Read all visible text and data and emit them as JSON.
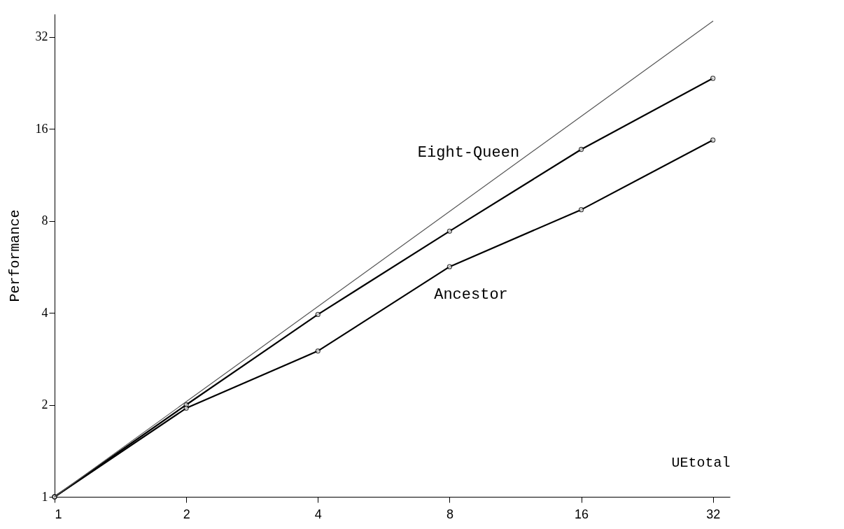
{
  "chart_data": {
    "type": "line",
    "xlabel": "UEtotal",
    "ylabel": "Performance",
    "x": [
      1,
      2,
      4,
      8,
      16,
      32
    ],
    "log": "xy",
    "xlim": [
      1,
      35
    ],
    "ylim": [
      1,
      38
    ],
    "xticks": [
      1,
      2,
      4,
      8,
      16,
      32
    ],
    "yticks": [
      1,
      2,
      4,
      8,
      16,
      32
    ],
    "grid": false,
    "series": [
      {
        "color": "#000000",
        "marker": "circle",
        "values": [
          1,
          2.0,
          3.95,
          7.4,
          13.7,
          23.4
        ]
      },
      {
        "color": "#000000",
        "marker": "circle",
        "values": [
          1,
          1.95,
          3.0,
          5.66,
          8.7,
          14.7
        ]
      },
      {
        "color": "#555555",
        "marker": "none",
        "x": [
          1,
          32
        ],
        "values": [
          1,
          36
        ]
      }
    ],
    "annotations": [
      {
        "text": "Eight-Queen",
        "x": 12.9,
        "y": 11.5
      },
      {
        "text": "Ancestor",
        "x": 6.6,
        "y": 4.8
      }
    ]
  }
}
